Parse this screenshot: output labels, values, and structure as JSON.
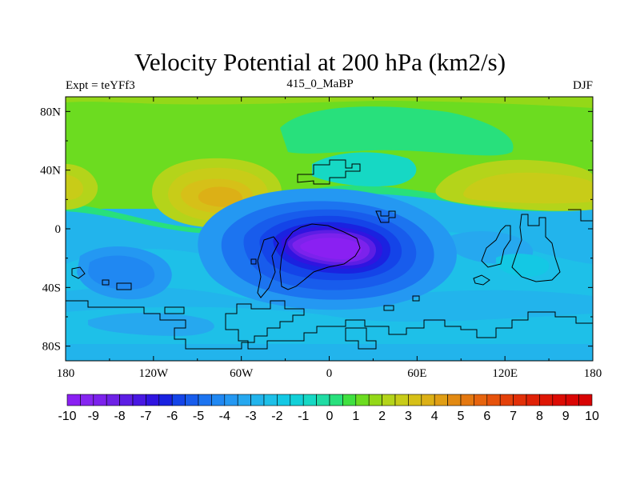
{
  "figure": {
    "title": "Velocity Potential at 200 hPa (km2/s)",
    "left_string": "Expt = teYFf3",
    "center_string": "415_0_MaBP",
    "right_string": "DJF"
  },
  "axes": {
    "x_ticks": [
      {
        "lon": -180,
        "label": "180"
      },
      {
        "lon": -120,
        "label": "120W"
      },
      {
        "lon": -60,
        "label": "60W"
      },
      {
        "lon": 0,
        "label": "0"
      },
      {
        "lon": 60,
        "label": "60E"
      },
      {
        "lon": 120,
        "label": "120E"
      },
      {
        "lon": 180,
        "label": "180"
      }
    ],
    "y_ticks": [
      {
        "lat": 80,
        "label": "80N"
      },
      {
        "lat": 40,
        "label": "40N"
      },
      {
        "lat": 0,
        "label": "0"
      },
      {
        "lat": -40,
        "label": "40S"
      },
      {
        "lat": -80,
        "label": "80S"
      }
    ],
    "lon_range": [
      -180,
      180
    ],
    "lat_range": [
      -90,
      90
    ]
  },
  "colorbar": {
    "levels": [
      -10,
      -9.5,
      -9,
      -8.5,
      -8,
      -7.5,
      -7,
      -6.5,
      -6,
      -5.5,
      -5,
      -4.5,
      -4,
      -3.5,
      -3,
      -2.5,
      -2,
      -1.5,
      -1,
      -0.5,
      0,
      0.5,
      1,
      1.5,
      2,
      2.5,
      3,
      3.5,
      4,
      4.5,
      5,
      5.5,
      6,
      6.5,
      7,
      7.5,
      8,
      8.5,
      9,
      9.5,
      10
    ],
    "labels": [
      "-10",
      "-9",
      "-8",
      "-7",
      "-6",
      "-5",
      "-4",
      "-3",
      "-2",
      "-1",
      "0",
      "1",
      "2",
      "3",
      "4",
      "5",
      "6",
      "7",
      "8",
      "9",
      "10"
    ],
    "colors": [
      "#8a20f2",
      "#8526f0",
      "#7c22ec",
      "#6e22e6",
      "#5c1ee4",
      "#4818e2",
      "#3014e0",
      "#1a22e0",
      "#1444e8",
      "#185cec",
      "#1c74f0",
      "#2088f2",
      "#2498f2",
      "#26a8ef",
      "#22b4ec",
      "#1ec0e8",
      "#14c8e4",
      "#12d0d8",
      "#16d8c4",
      "#20dca4",
      "#28e07c",
      "#40e040",
      "#6cdc20",
      "#94d818",
      "#b4d41a",
      "#c8cc18",
      "#d6c018",
      "#dcb016",
      "#e09e14",
      "#e28a12",
      "#e47810",
      "#e6640e",
      "#e6520c",
      "#e4400a",
      "#e23008",
      "#e02206",
      "#de1604",
      "#dc0c04",
      "#da0604",
      "#d80404"
    ]
  },
  "chart_data": {
    "type": "heatmap",
    "title": "Velocity Potential at 200 hPa (km2/s)",
    "variable": "velocity potential at 200 hPa",
    "units": "km2/s",
    "experiment": "teYFf3",
    "period": "415_0_MaBP",
    "season": "DJF",
    "x_range": [
      -180,
      180
    ],
    "y_range": [
      -90,
      90
    ],
    "field_features": [
      {
        "name": "minimum",
        "lon": -5,
        "lat": -12,
        "value": -10
      },
      {
        "name": "maximum",
        "lon": -85,
        "lat": 25,
        "value": 5
      },
      {
        "name": "maximum",
        "lon": 160,
        "lat": 30,
        "value": 4
      },
      {
        "name": "maximum",
        "lon": -180,
        "lat": 30,
        "value": 4
      },
      {
        "name": "minimum",
        "lon": -150,
        "lat": -40,
        "value": -3
      }
    ],
    "contour_min": -10,
    "contour_max": 10,
    "contour_interval": 0.5
  }
}
